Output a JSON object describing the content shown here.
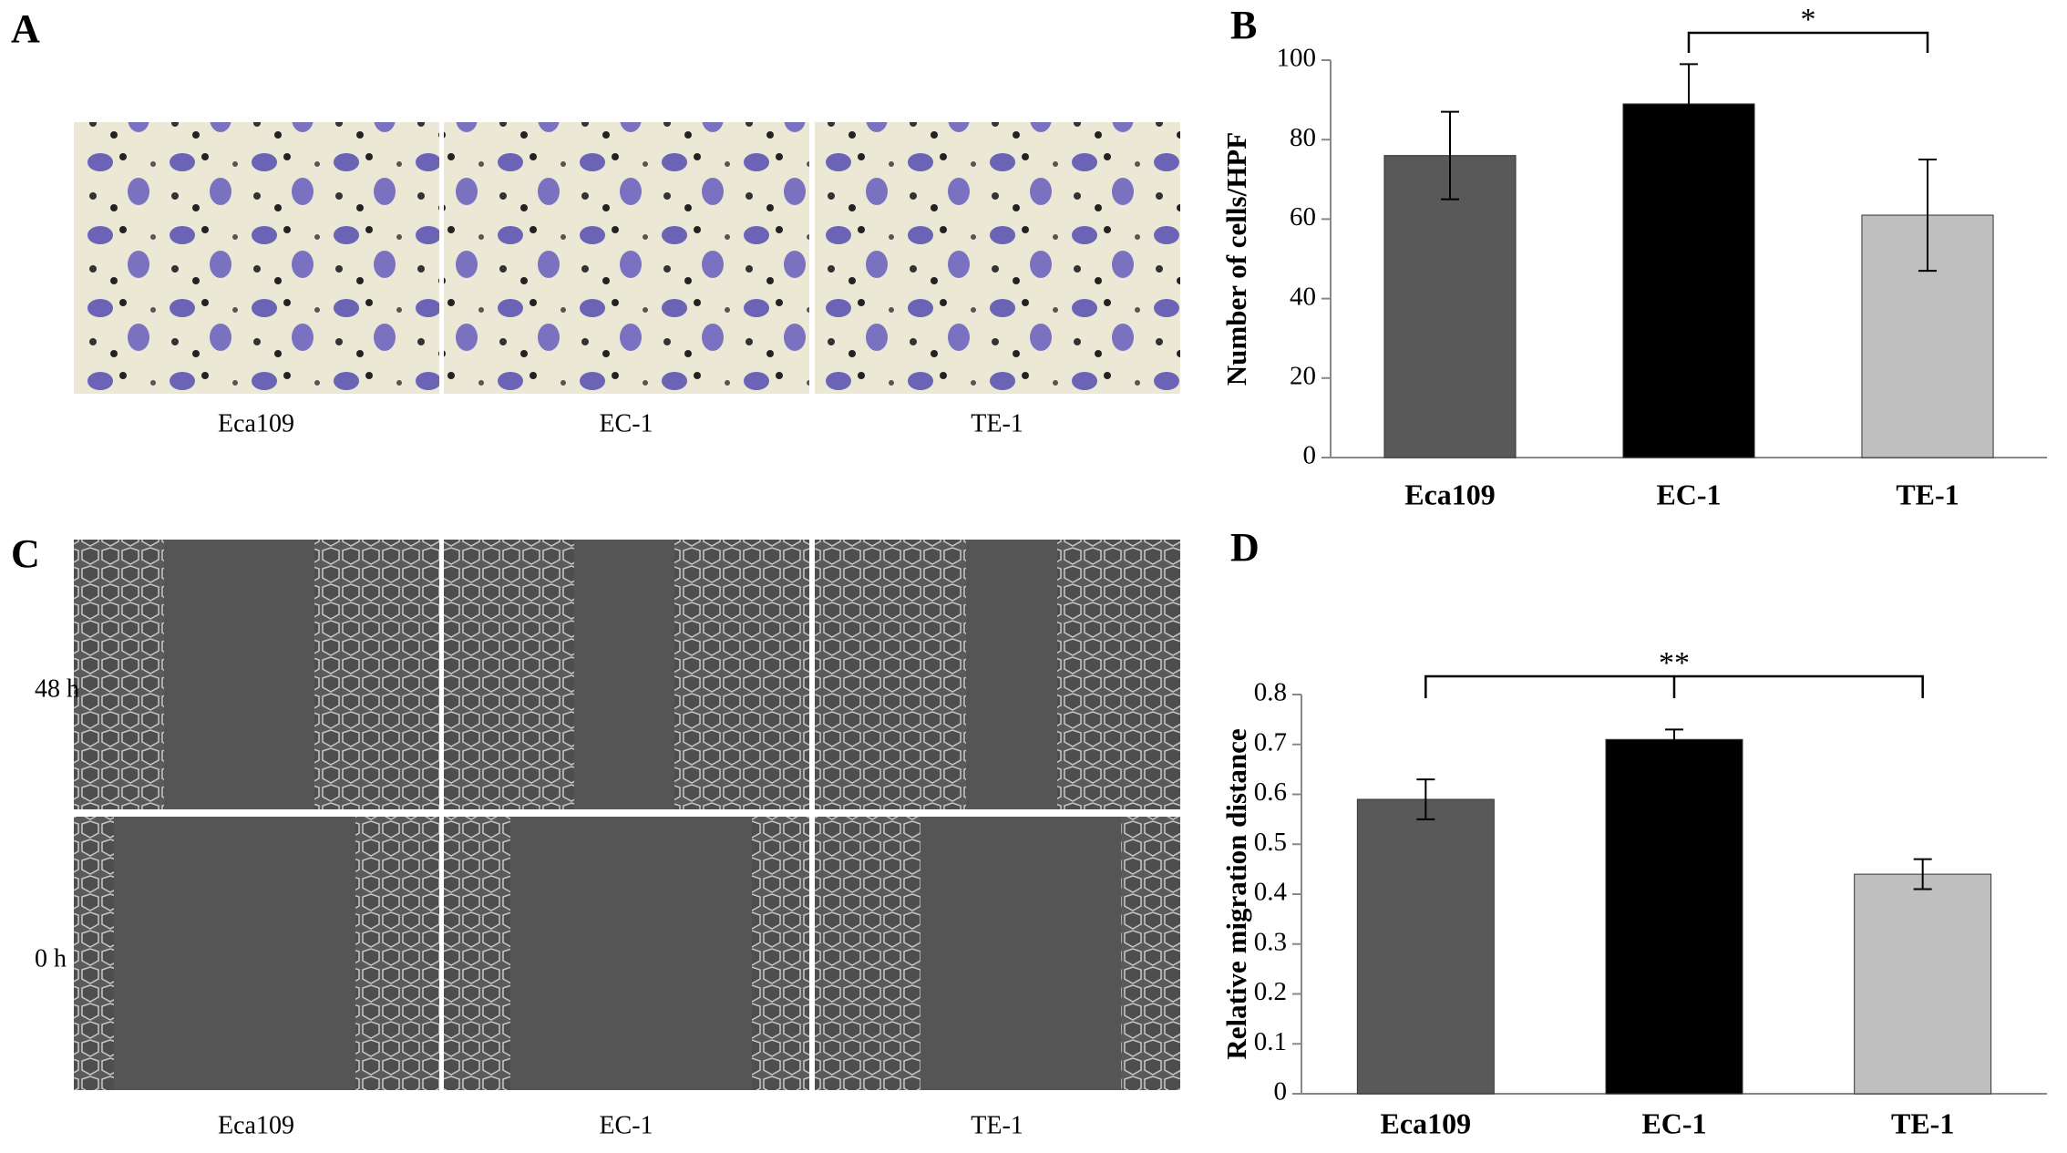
{
  "panel_a": {
    "label": "A",
    "captions": [
      "Eca109",
      "EC-1",
      "TE-1"
    ]
  },
  "panel_c": {
    "label": "C",
    "rows": [
      "48 h",
      "0 h"
    ],
    "captions": [
      "Eca109",
      "EC-1",
      "TE-1"
    ]
  },
  "chart_data": [
    {
      "type": "bar",
      "label": "B",
      "ylabel": "Number of cells/HPF",
      "categories": [
        "Eca109",
        "EC-1",
        "TE-1"
      ],
      "values": [
        76,
        89,
        61
      ],
      "errors": [
        11,
        10,
        14
      ],
      "colors": [
        "#595959",
        "#000000",
        "#bfbfbf"
      ],
      "ylim": [
        0,
        100
      ],
      "yticks": [
        0,
        20,
        40,
        60,
        80,
        100
      ],
      "annotation": "*"
    },
    {
      "type": "bar",
      "label": "D",
      "ylabel": "Relative migration distance",
      "categories": [
        "Eca109",
        "EC-1",
        "TE-1"
      ],
      "values": [
        0.59,
        0.71,
        0.44
      ],
      "errors": [
        0.04,
        0.02,
        0.03
      ],
      "colors": [
        "#595959",
        "#000000",
        "#bfbfbf"
      ],
      "ylim": [
        0,
        0.8
      ],
      "yticks": [
        0,
        0.1,
        0.2,
        0.3,
        0.4,
        0.5,
        0.6,
        0.7,
        0.8
      ],
      "annotation": "**"
    }
  ]
}
